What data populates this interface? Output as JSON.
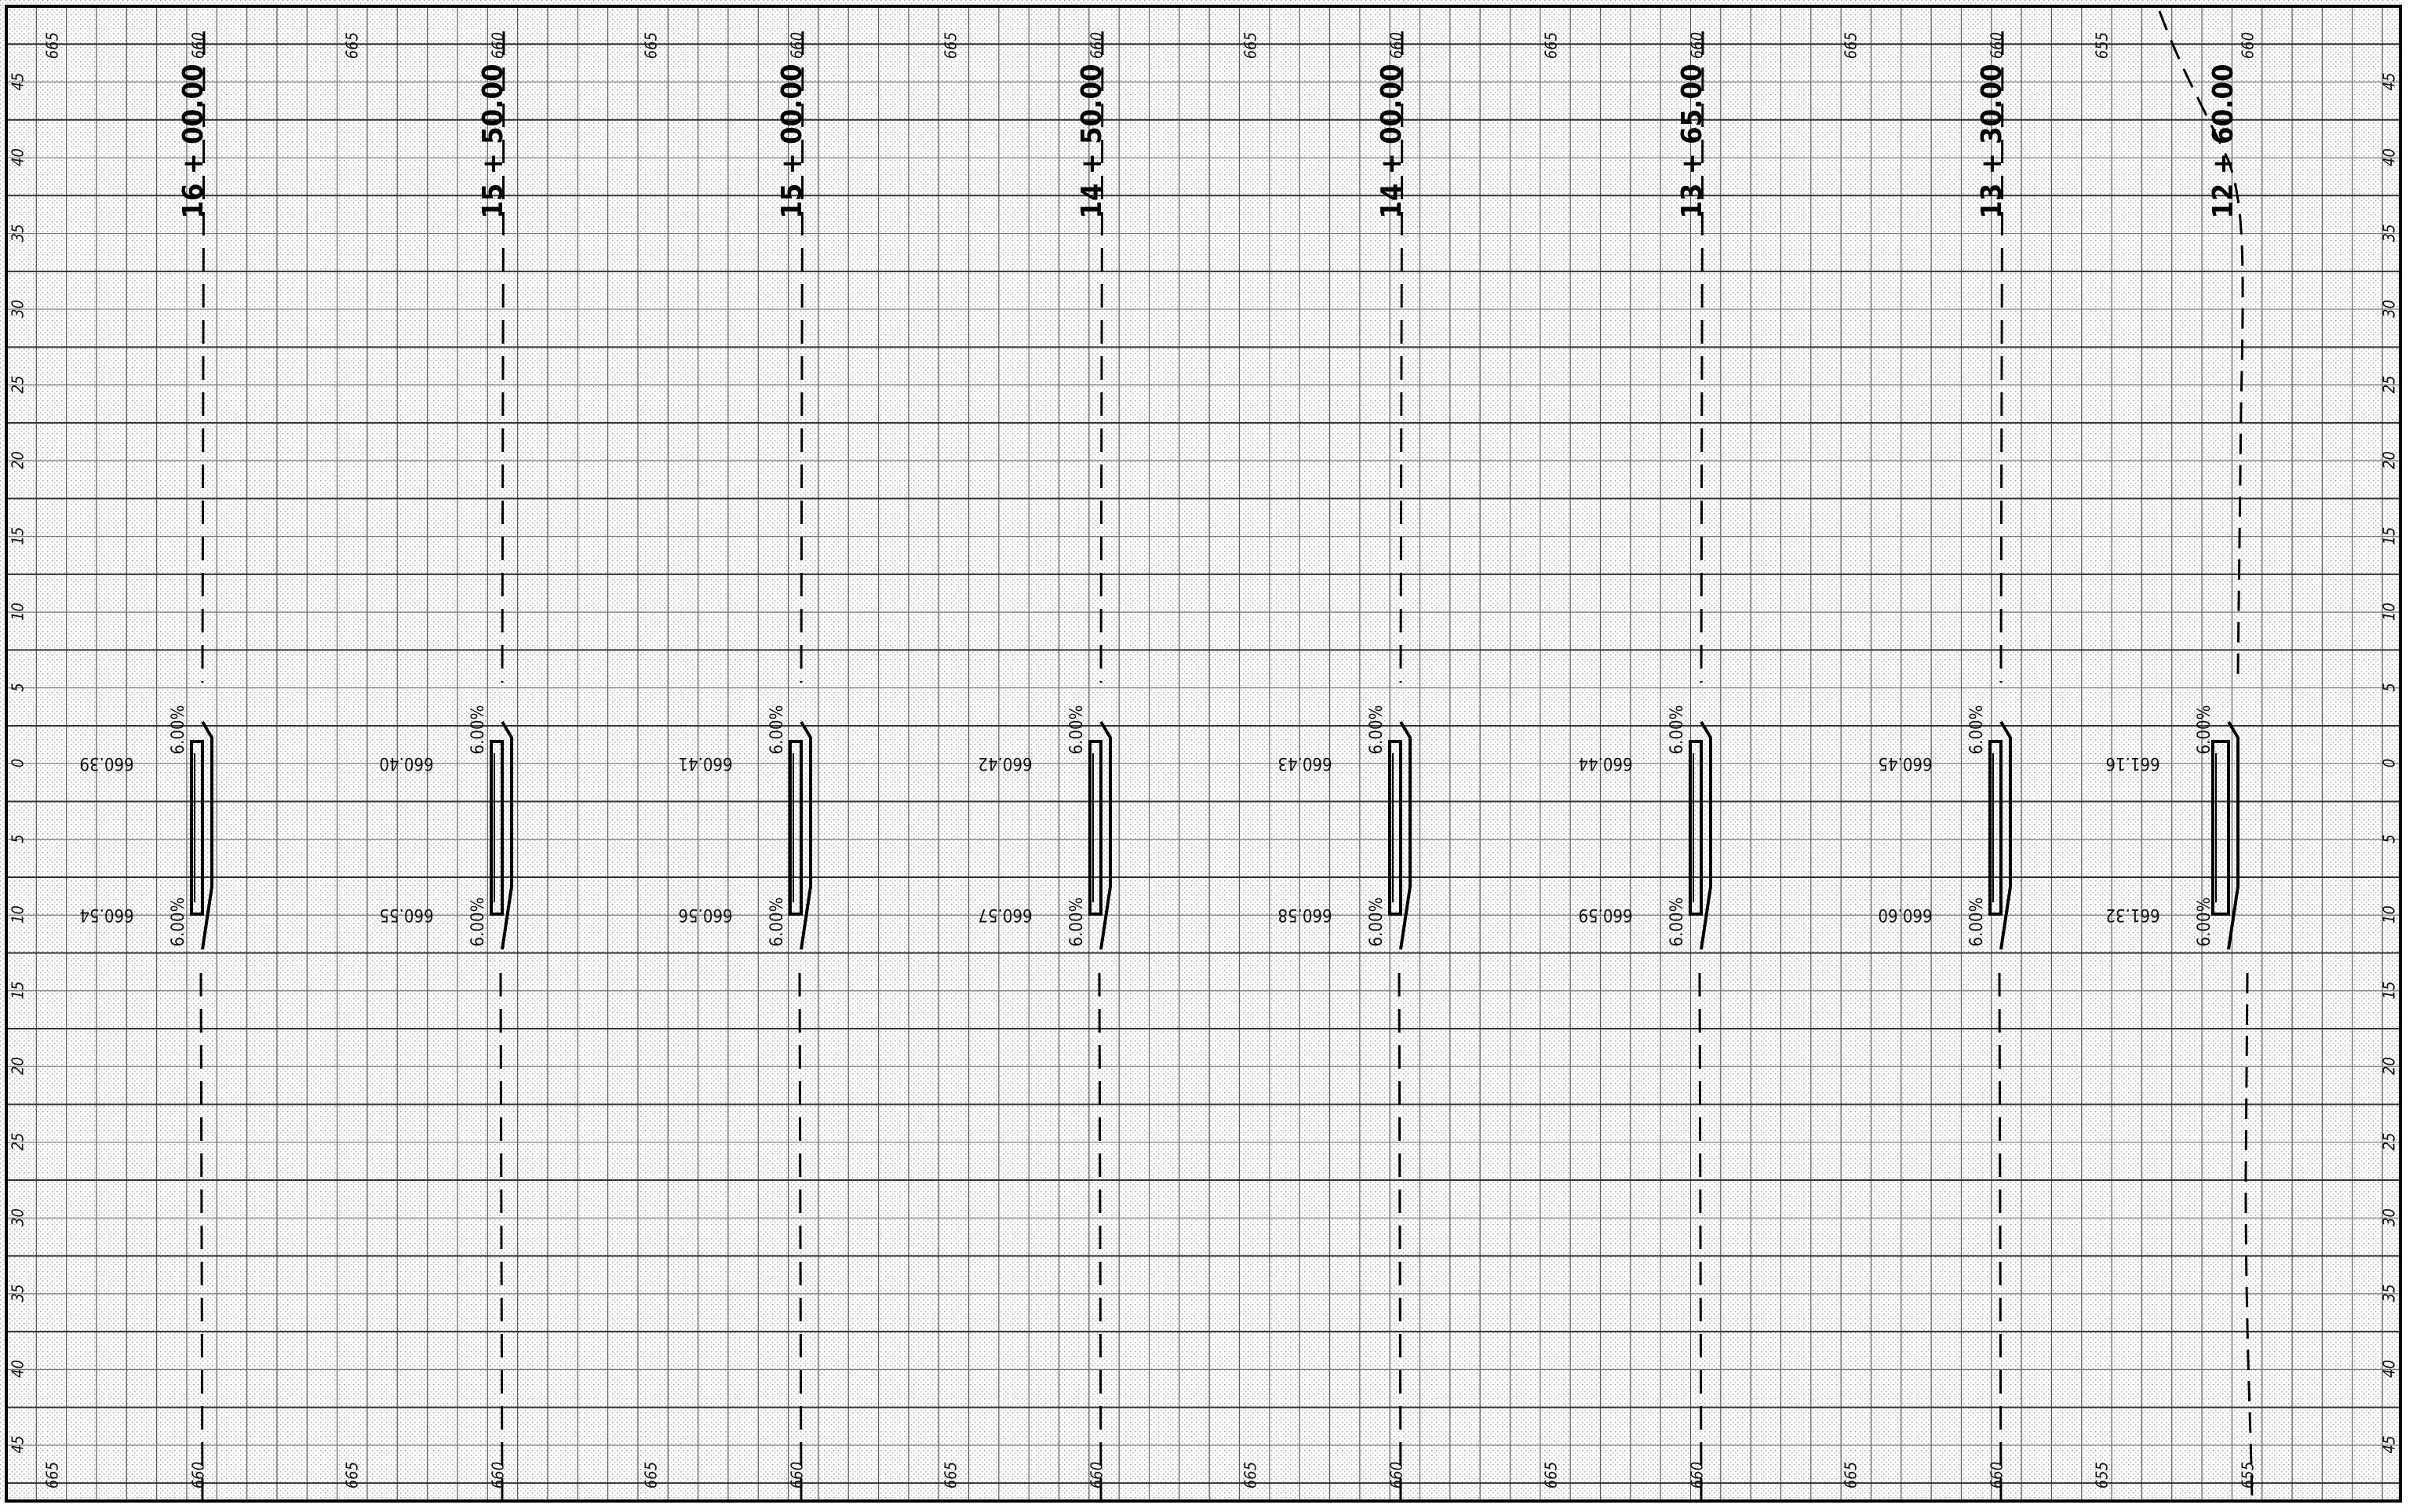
{
  "sheet": {
    "offset_labels": [
      "45",
      "40",
      "35",
      "30",
      "25",
      "20",
      "15",
      "10",
      "5",
      "0",
      "5",
      "10",
      "15",
      "20",
      "25",
      "30",
      "35",
      "40",
      "45"
    ]
  },
  "sections": [
    {
      "station": "16 + 00.00",
      "elev_top": "660",
      "elev_bottom": "660",
      "ref_elev": "665",
      "grade_upper": "6.00%",
      "grade_lower": "6.00%",
      "elev_cl": "660.39",
      "elev_edge": "660.54"
    },
    {
      "station": "15 + 50.00",
      "elev_top": "660",
      "elev_bottom": "660",
      "ref_elev": "665",
      "grade_upper": "6.00%",
      "grade_lower": "6.00%",
      "elev_cl": "660.40",
      "elev_edge": "660.55"
    },
    {
      "station": "15 + 00.00",
      "elev_top": "660",
      "elev_bottom": "660",
      "ref_elev": "665",
      "grade_upper": "6.00%",
      "grade_lower": "6.00%",
      "elev_cl": "660.41",
      "elev_edge": "660.56"
    },
    {
      "station": "14 + 50.00",
      "elev_top": "660",
      "elev_bottom": "660",
      "ref_elev": "665",
      "grade_upper": "6.00%",
      "grade_lower": "6.00%",
      "elev_cl": "660.42",
      "elev_edge": "660.57"
    },
    {
      "station": "14 + 00.00",
      "elev_top": "660",
      "elev_bottom": "660",
      "ref_elev": "665",
      "grade_upper": "6.00%",
      "grade_lower": "6.00%",
      "elev_cl": "660.43",
      "elev_edge": "660.58"
    },
    {
      "station": "13 + 65.00",
      "elev_top": "660",
      "elev_bottom": "660",
      "ref_elev": "665",
      "grade_upper": "6.00%",
      "grade_lower": "6.00%",
      "elev_cl": "660.44",
      "elev_edge": "660.59"
    },
    {
      "station": "13 + 30.00",
      "elev_top": "660",
      "elev_bottom": "660",
      "ref_elev": "665",
      "grade_upper": "6.00%",
      "grade_lower": "6.00%",
      "elev_cl": "660.45",
      "elev_edge": "660.60"
    },
    {
      "station": "12 + 60.00",
      "elev_top": "660",
      "elev_bottom": "655",
      "ref_elev": "655",
      "grade_upper": "6.00%",
      "grade_lower": "6.00%",
      "elev_cl": "661.16",
      "elev_edge": "661.32"
    }
  ]
}
